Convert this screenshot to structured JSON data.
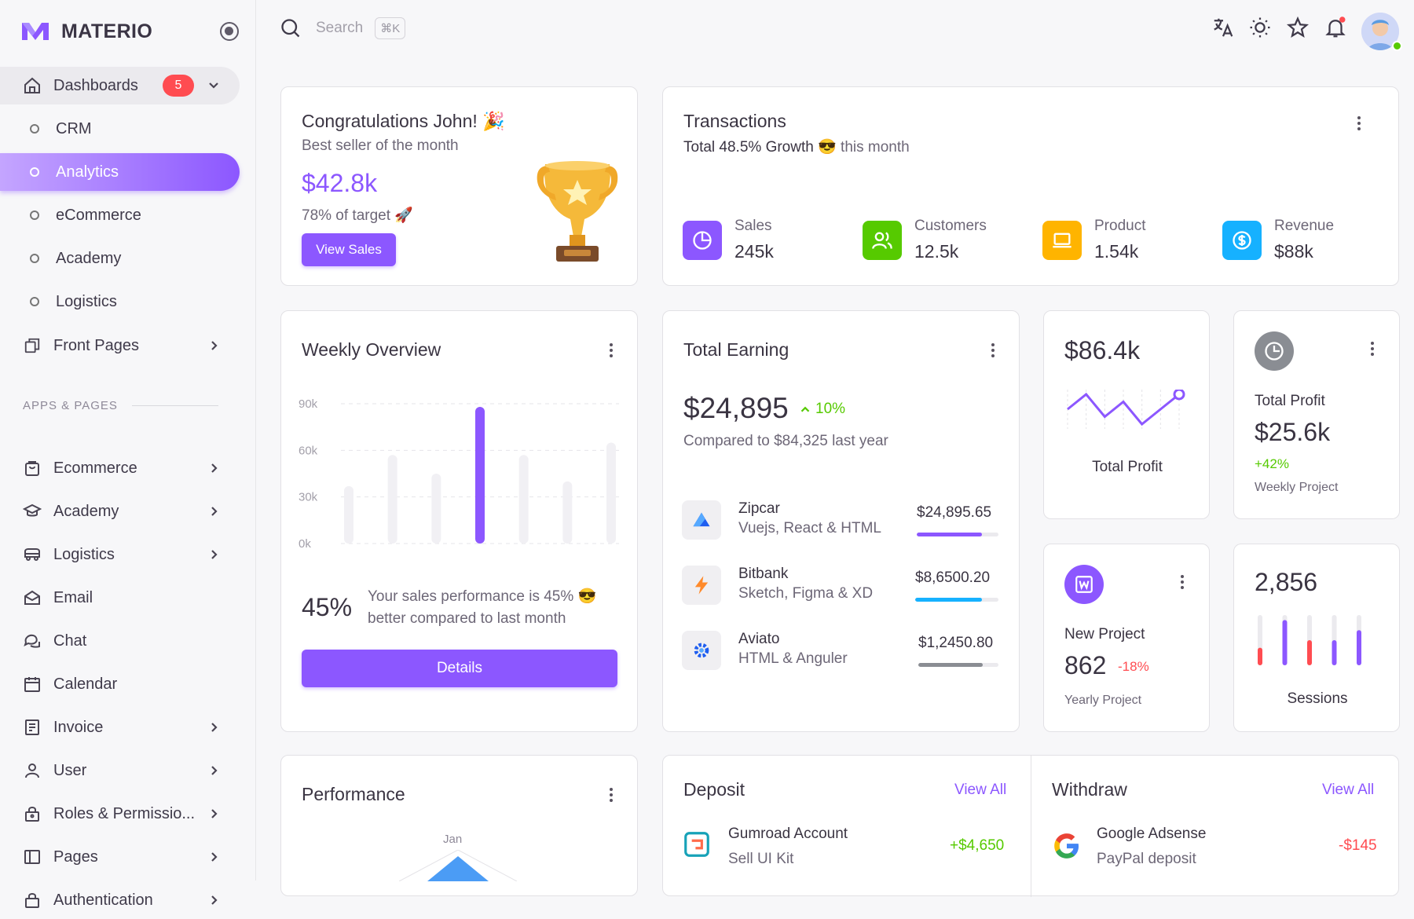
{
  "brand": {
    "name": "MATERIO"
  },
  "colors": {
    "primary": "#8C57FF",
    "success": "#56CA00",
    "warning": "#FFB400",
    "info": "#16B1FF",
    "error": "#FF4C51"
  },
  "sidebar": {
    "dashboards": {
      "label": "Dashboards",
      "badge": "5"
    },
    "sub_items": [
      {
        "label": "CRM"
      },
      {
        "label": "Analytics",
        "active": true
      },
      {
        "label": "eCommerce"
      },
      {
        "label": "Academy"
      },
      {
        "label": "Logistics"
      }
    ],
    "front_pages": {
      "label": "Front Pages"
    },
    "section_label": "APPS & PAGES",
    "items": [
      {
        "label": "Ecommerce",
        "icon": "shopping-bag-icon"
      },
      {
        "label": "Academy",
        "icon": "graduation-cap-icon"
      },
      {
        "label": "Logistics",
        "icon": "truck-icon"
      },
      {
        "label": "Email",
        "icon": "mail-icon"
      },
      {
        "label": "Chat",
        "icon": "chat-icon"
      },
      {
        "label": "Calendar",
        "icon": "calendar-icon"
      },
      {
        "label": "Invoice",
        "icon": "invoice-icon"
      },
      {
        "label": "User",
        "icon": "user-icon"
      },
      {
        "label": "Roles & Permissio...",
        "icon": "lock-icon"
      },
      {
        "label": "Pages",
        "icon": "layout-icon"
      },
      {
        "label": "Authentication",
        "icon": "shield-icon"
      }
    ]
  },
  "topbar": {
    "search_placeholder": "Search",
    "shortcut": "⌘K"
  },
  "congrats": {
    "title": "Congratulations John! 🎉",
    "subtitle": "Best seller of the month",
    "amount": "$42.8k",
    "target": "78% of target 🚀",
    "button": "View Sales"
  },
  "transactions": {
    "title": "Transactions",
    "growth": "Total 48.5% Growth",
    "emoji": "😎",
    "period": "this month",
    "stats": [
      {
        "label": "Sales",
        "value": "245k",
        "icon": "pie-chart-icon"
      },
      {
        "label": "Customers",
        "value": "12.5k",
        "icon": "users-icon"
      },
      {
        "label": "Product",
        "value": "1.54k",
        "icon": "laptop-icon"
      },
      {
        "label": "Revenue",
        "value": "$88k",
        "icon": "dollar-icon"
      }
    ]
  },
  "weekly": {
    "title": "Weekly Overview",
    "percent": "45%",
    "description": "Your sales performance is 45% 😎 better compared to last month",
    "button": "Details"
  },
  "chart_data": {
    "type": "bar",
    "categories": [
      "",
      "",
      "",
      "",
      "",
      "",
      ""
    ],
    "values": [
      37,
      57,
      45,
      88,
      57,
      40,
      65
    ],
    "highlight_index": 3,
    "ylim": [
      0,
      90
    ],
    "yticks": [
      "90k",
      "60k",
      "30k",
      "0k"
    ],
    "grid": true,
    "title": "Weekly Overview"
  },
  "earning": {
    "title": "Total Earning",
    "amount": "$24,895",
    "change": "10%",
    "compare": "Compared to $84,325 last year",
    "items": [
      {
        "name": "Zipcar",
        "sub": "Vuejs, React & HTML",
        "amount": "$24,895.65",
        "progress": 0.8,
        "color": "#8C57FF",
        "icon": "zipcar-logo-icon"
      },
      {
        "name": "Bitbank",
        "sub": "Sketch, Figma & XD",
        "amount": "$8,6500.20",
        "progress": 0.8,
        "color": "#16B1FF",
        "icon": "lightning-icon"
      },
      {
        "name": "Aviato",
        "sub": "HTML & Anguler",
        "amount": "$1,2450.80",
        "progress": 0.8,
        "color": "#8A8D93",
        "icon": "aviato-logo-icon"
      }
    ]
  },
  "profit_line": {
    "amount": "$86.4k",
    "label": "Total Profit",
    "points": [
      3,
      5,
      2,
      4,
      1,
      3,
      5
    ]
  },
  "total_profit": {
    "title": "Total Profit",
    "amount": "$25.6k",
    "change": "+42%",
    "sub": "Weekly Project"
  },
  "new_project": {
    "title": "New Project",
    "value": "862",
    "change": "-18%",
    "sub": "Yearly Project"
  },
  "sessions": {
    "value": "2,856",
    "label": "Sessions",
    "bars": [
      0.35,
      0.9,
      0.5,
      0.5,
      0.7
    ]
  },
  "performance": {
    "title": "Performance",
    "month": "Jan"
  },
  "deposit": {
    "title": "Deposit",
    "view_all": "View All",
    "name": "Gumroad Account",
    "sub": "Sell UI Kit",
    "amount": "+$4,650"
  },
  "withdraw": {
    "title": "Withdraw",
    "view_all": "View All",
    "name": "Google Adsense",
    "sub": "PayPal deposit",
    "amount": "-$145"
  }
}
